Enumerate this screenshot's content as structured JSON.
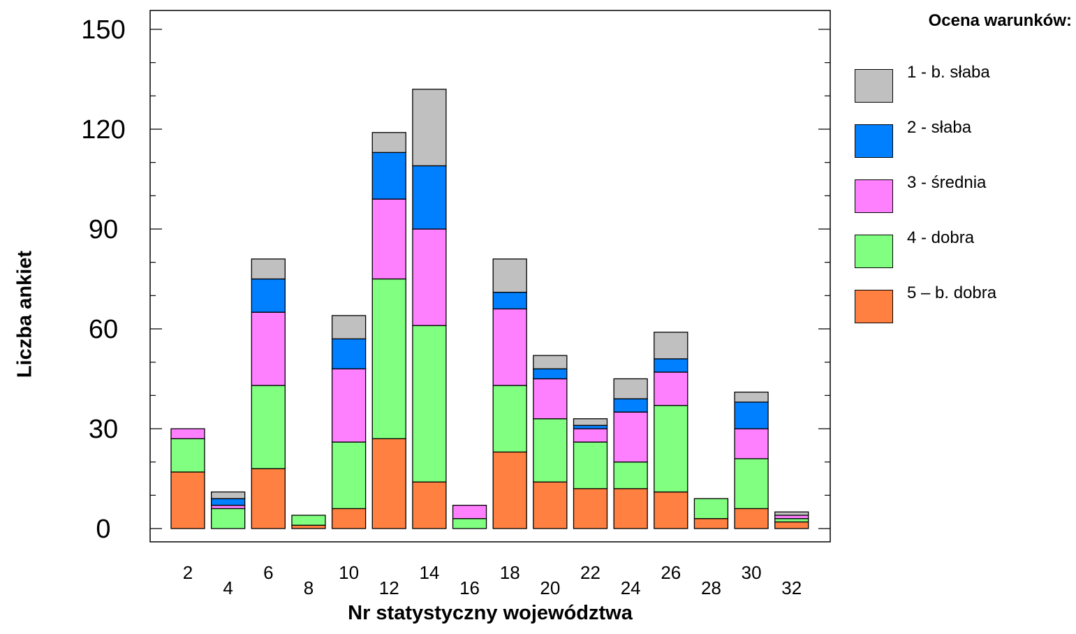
{
  "chart_data": {
    "type": "bar",
    "stacked": true,
    "title": "",
    "xlabel": "Nr  statystyczny województwa",
    "ylabel": "Liczba ankiet",
    "ylim": [
      0,
      150
    ],
    "yticks": [
      0,
      30,
      60,
      90,
      120,
      150
    ],
    "grid": false,
    "legend_title": "Ocena  warunków:",
    "legend_position": "right",
    "categories": [
      "2",
      "4",
      "6",
      "8",
      "10",
      "12",
      "14",
      "16",
      "18",
      "20",
      "22",
      "24",
      "26",
      "28",
      "30",
      "32"
    ],
    "series": [
      {
        "name": "5 – b. dobra",
        "color": "#ff8040",
        "values": [
          17,
          0,
          18,
          1,
          6,
          27,
          14,
          0,
          23,
          14,
          12,
          12,
          11,
          3,
          6,
          2
        ]
      },
      {
        "name": "4 - dobra",
        "color": "#80ff80",
        "values": [
          10,
          6,
          25,
          3,
          20,
          48,
          47,
          3,
          20,
          19,
          14,
          8,
          26,
          6,
          15,
          1
        ]
      },
      {
        "name": "3 - średnia",
        "color": "#ff80ff",
        "values": [
          3,
          1,
          22,
          0,
          22,
          24,
          29,
          4,
          23,
          12,
          4,
          15,
          10,
          0,
          9,
          1
        ]
      },
      {
        "name": "2 - słaba",
        "color": "#0080ff",
        "values": [
          0,
          2,
          10,
          0,
          9,
          14,
          19,
          0,
          5,
          3,
          1,
          4,
          4,
          0,
          8,
          0
        ]
      },
      {
        "name": "1 - b. słaba",
        "color": "#c0c0c0",
        "values": [
          0,
          2,
          6,
          0,
          7,
          6,
          23,
          0,
          10,
          4,
          2,
          6,
          8,
          0,
          3,
          1
        ]
      }
    ],
    "legend_order": [
      "1 - b. słaba",
      "2 - słaba",
      "3 - średnia",
      "4 - dobra",
      "5 – b. dobra"
    ]
  }
}
